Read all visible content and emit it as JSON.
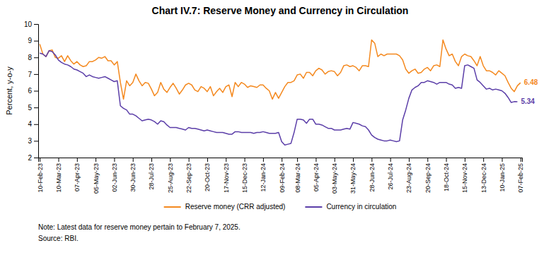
{
  "chart_data": {
    "type": "line",
    "title": "Chart IV.7: Reserve Money and Currency in Circulation",
    "ylabel": "Percent, y-o-y",
    "ylim": [
      2,
      10
    ],
    "yticks": [
      2,
      3,
      4,
      5,
      6,
      7,
      8,
      9,
      10
    ],
    "grid": false,
    "legend": "bottom",
    "note": "Note: Latest data for reserve money pertain to February 7, 2025.",
    "source": "Source: RBI.",
    "categories": [
      "10-Feb-23",
      null,
      null,
      null,
      null,
      null,
      "10-Mar-23",
      null,
      null,
      null,
      null,
      null,
      "07-Apr-23",
      null,
      null,
      null,
      null,
      null,
      "05-May-23",
      null,
      null,
      null,
      null,
      null,
      "02-Jun-23",
      null,
      null,
      null,
      null,
      null,
      "30-Jun-23",
      null,
      null,
      null,
      null,
      null,
      "28-Jul-23",
      null,
      null,
      null,
      null,
      null,
      "25-Aug-23",
      null,
      null,
      null,
      null,
      null,
      "22-Sep-23",
      null,
      null,
      null,
      null,
      null,
      "20-Oct-23",
      null,
      null,
      null,
      null,
      null,
      "17-Nov-23",
      null,
      null,
      null,
      null,
      null,
      "15-Dec-23",
      null,
      null,
      null,
      null,
      null,
      "12-Jan-24",
      null,
      null,
      null,
      null,
      null,
      "09-Feb-24",
      null,
      null,
      null,
      null,
      "08-Mar-24",
      null,
      null,
      null,
      null,
      null,
      "05-Apr-24",
      null,
      null,
      null,
      null,
      null,
      "03-May-24",
      null,
      null,
      null,
      null,
      null,
      "31-May-24",
      null,
      null,
      null,
      null,
      null,
      "28-Jun-24",
      null,
      null,
      null,
      null,
      null,
      "26-Jul-24",
      null,
      null,
      null,
      null,
      null,
      "23-Aug-24",
      null,
      null,
      null,
      null,
      null,
      "20-Sep-24",
      null,
      null,
      null,
      null,
      null,
      "18-Oct-24",
      null,
      null,
      null,
      null,
      null,
      "15-Nov-24",
      null,
      null,
      null,
      null,
      null,
      "13-Dec-24",
      null,
      null,
      null,
      null,
      null,
      "10-Jan-25",
      null,
      null,
      null,
      null,
      null,
      "07-Feb-25"
    ],
    "series": [
      {
        "name": "Reserve money (CRR adjusted)",
        "color": "#F4891F",
        "values": [
          8.8,
          8.2,
          8.05,
          8.4,
          8.45,
          8.0,
          7.95,
          8.1,
          7.75,
          8.1,
          7.8,
          7.6,
          7.75,
          7.55,
          7.45,
          7.5,
          7.75,
          7.75,
          7.85,
          8.0,
          7.95,
          8.05,
          7.8,
          7.8,
          7.55,
          7.75,
          6.5,
          5.5,
          6.6,
          6.3,
          6.5,
          7.0,
          6.6,
          6.3,
          6.5,
          6.45,
          6.1,
          5.7,
          5.9,
          6.5,
          6.1,
          5.9,
          6.2,
          6.45,
          6.15,
          5.8,
          6.05,
          6.35,
          6.45,
          6.35,
          6.05,
          5.95,
          6.25,
          6.15,
          5.95,
          6.25,
          5.7,
          5.95,
          6.15,
          5.9,
          6.25,
          6.35,
          5.65,
          6.5,
          6.25,
          6.5,
          6.4,
          6.2,
          6.3,
          6.25,
          6.2,
          6.35,
          6.35,
          6.15,
          6.0,
          5.5,
          5.9,
          5.55,
          5.9,
          6.25,
          6.5,
          6.5,
          6.6,
          6.95,
          7.0,
          6.75,
          7.1,
          7.1,
          6.9,
          7.2,
          7.35,
          7.25,
          7.0,
          7.15,
          7.2,
          7.15,
          6.9,
          7.1,
          7.5,
          7.55,
          7.45,
          7.5,
          7.4,
          7.2,
          7.5,
          7.5,
          7.45,
          9.05,
          8.85,
          8.05,
          8.2,
          8.1,
          8.2,
          8.2,
          8.2,
          8.2,
          8.1,
          7.85,
          7.3,
          7.05,
          7.2,
          7.3,
          7.05,
          7.1,
          7.3,
          7.4,
          7.2,
          7.5,
          7.55,
          7.45,
          9.05,
          8.5,
          8.1,
          8.2,
          7.75,
          7.5,
          8.05,
          8.2,
          8.1,
          8.05,
          7.8,
          7.5,
          8.05,
          7.5,
          7.2,
          7.2,
          7.1,
          6.95,
          7.2,
          7.05,
          6.9,
          6.5,
          6.15,
          5.95,
          6.3,
          6.48
        ]
      },
      {
        "name": "Currency in circulation",
        "color": "#5B3EA8",
        "values": [
          8.25,
          8.2,
          8.05,
          8.4,
          8.35,
          8.15,
          7.85,
          7.7,
          7.6,
          7.55,
          7.45,
          7.3,
          7.25,
          7.15,
          7.05,
          6.85,
          6.95,
          6.85,
          6.8,
          6.75,
          6.8,
          6.85,
          6.75,
          6.65,
          6.55,
          6.6,
          5.1,
          4.95,
          4.85,
          4.6,
          4.6,
          4.5,
          4.35,
          4.2,
          4.25,
          4.3,
          4.25,
          4.15,
          4.0,
          4.2,
          4.15,
          3.95,
          3.8,
          3.8,
          3.8,
          3.75,
          3.7,
          3.65,
          3.8,
          3.75,
          3.75,
          3.7,
          3.65,
          3.6,
          3.65,
          3.6,
          3.55,
          3.5,
          3.5,
          3.5,
          3.45,
          3.4,
          3.4,
          3.55,
          3.55,
          3.5,
          3.5,
          3.5,
          3.5,
          3.45,
          3.5,
          3.5,
          3.55,
          3.5,
          3.45,
          3.45,
          3.45,
          3.5,
          2.95,
          2.75,
          2.8,
          2.85,
          3.5,
          4.3,
          4.3,
          4.25,
          4.05,
          4.3,
          4.3,
          4.0,
          4.0,
          3.95,
          3.85,
          3.75,
          3.75,
          3.65,
          3.65,
          3.65,
          3.7,
          3.75,
          3.7,
          4.1,
          4.05,
          4.0,
          3.9,
          3.85,
          3.65,
          3.35,
          3.2,
          3.1,
          3.05,
          3.0,
          3.0,
          3.05,
          3.0,
          2.95,
          3.0,
          4.25,
          4.85,
          5.55,
          6.05,
          6.2,
          6.3,
          6.5,
          6.5,
          6.6,
          6.55,
          6.5,
          6.4,
          6.5,
          6.5,
          6.5,
          6.4,
          6.35,
          6.15,
          6.2,
          6.15,
          7.5,
          7.55,
          7.45,
          7.35,
          6.65,
          6.5,
          6.3,
          6.1,
          6.15,
          6.05,
          6.1,
          6.05,
          6.0,
          5.85,
          5.6,
          5.3,
          5.35,
          5.34,
          null
        ]
      }
    ],
    "annotations": [
      {
        "text": "6.48",
        "series": "Reserve money (CRR adjusted)"
      },
      {
        "text": "5.34",
        "series": "Currency in circulation"
      }
    ]
  }
}
